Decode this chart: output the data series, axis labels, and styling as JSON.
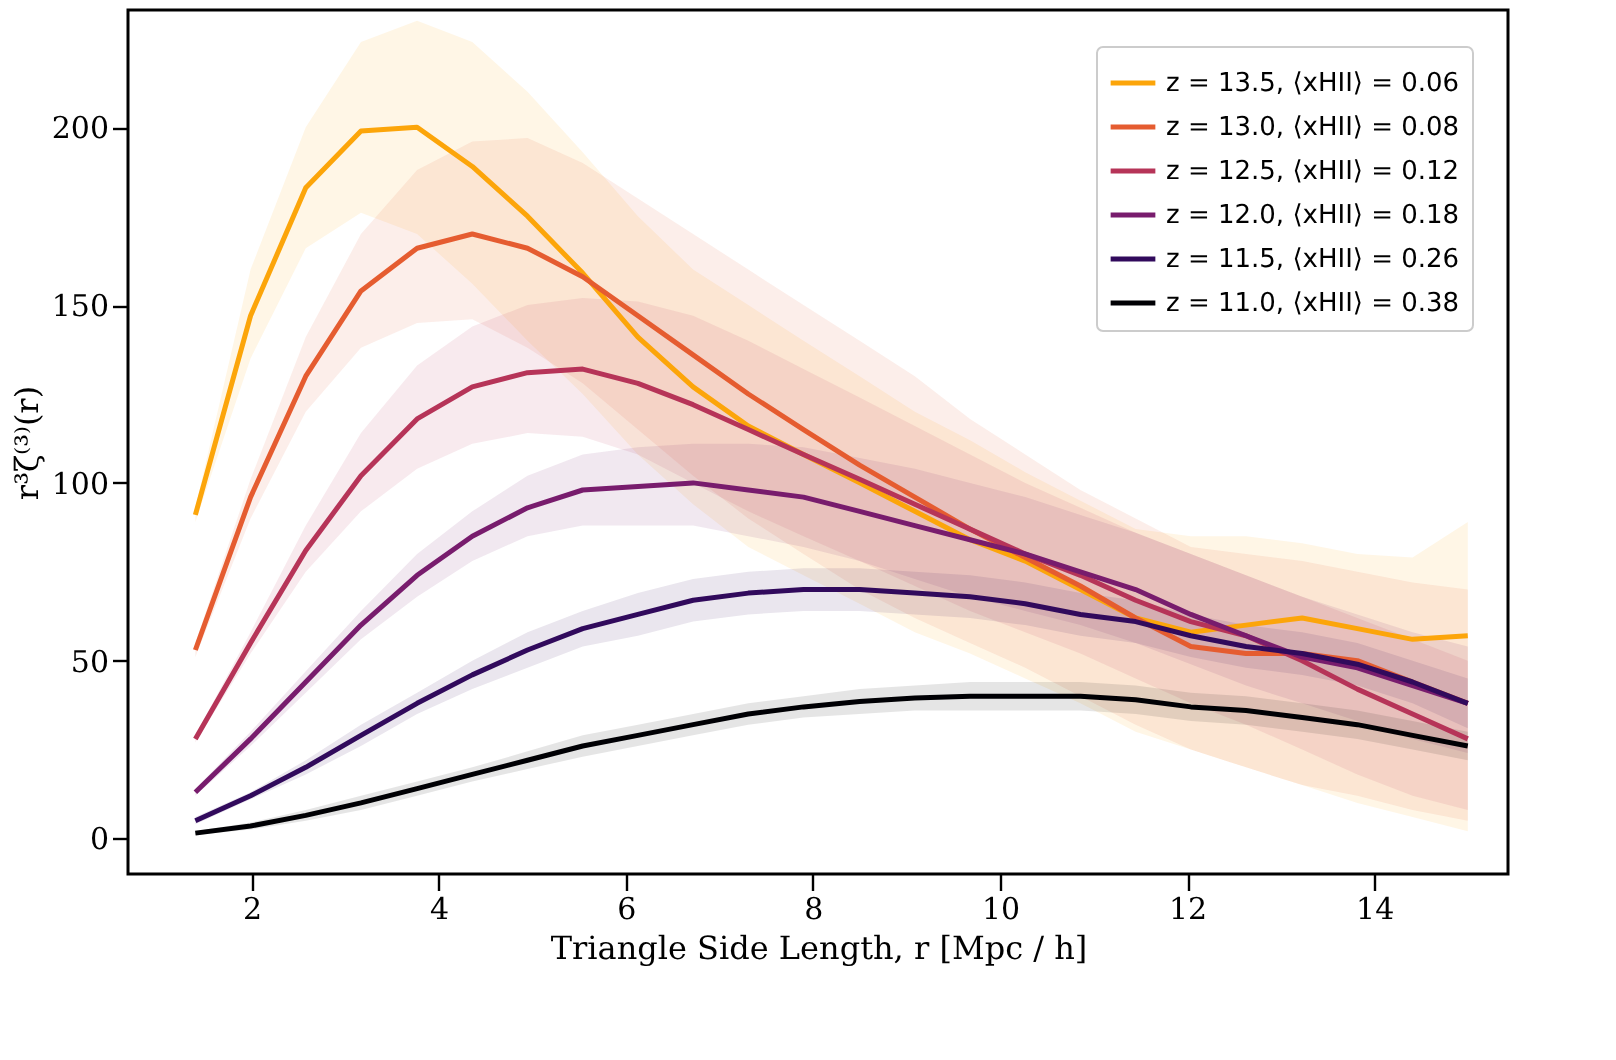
{
  "chart_data": {
    "type": "line",
    "xlabel": "Triangle Side Length, r [Mpc / h]",
    "ylabel": "r³ζ⁽³⁾(r)",
    "x": [
      1.4,
      1.99,
      2.58,
      3.17,
      3.77,
      4.36,
      4.95,
      5.54,
      6.13,
      6.72,
      7.31,
      7.9,
      8.5,
      9.09,
      9.68,
      10.27,
      10.86,
      11.45,
      12.04,
      12.63,
      13.23,
      13.82,
      14.41,
      15.0
    ],
    "xlim": [
      0.68,
      15.43
    ],
    "xticks": [
      2,
      4,
      6,
      8,
      10,
      12,
      14
    ],
    "ylim": [
      -10,
      233
    ],
    "yticks": [
      0,
      50,
      100,
      150,
      200
    ],
    "grid": false,
    "legend": "top right",
    "marker": "none",
    "line_style": "solid",
    "series": [
      {
        "name": "z = 13.5, ⟨xHII⟩ = 0.06",
        "color": "#fca50a",
        "values": [
          91,
          147,
          183,
          199,
          200,
          189,
          175,
          159,
          141,
          127,
          116,
          108,
          100,
          92,
          84,
          78,
          70,
          62,
          58,
          60,
          62,
          59,
          56,
          57
        ],
        "upper": [
          93,
          160,
          200,
          224,
          230,
          224,
          210,
          193,
          175,
          160,
          150,
          140,
          130,
          120,
          112,
          103,
          95,
          87,
          85,
          85,
          83,
          80,
          79,
          89
        ],
        "lower": [
          89,
          135,
          166,
          176,
          170,
          156,
          140,
          125,
          108,
          94,
          82,
          74,
          66,
          58,
          52,
          45,
          38,
          30,
          25,
          20,
          15,
          10,
          6,
          2
        ]
      },
      {
        "name": "z = 13.0, ⟨xHII⟩ = 0.08",
        "color": "#e55c30",
        "values": [
          53,
          96,
          130,
          154,
          166,
          170,
          166,
          158,
          147,
          136,
          125,
          115,
          105,
          96,
          87,
          79,
          71,
          62,
          54,
          52,
          52,
          50,
          44,
          38
        ],
        "upper": [
          55,
          101,
          141,
          170,
          188,
          196,
          197,
          190,
          180,
          170,
          160,
          150,
          140,
          130,
          118,
          108,
          98,
          90,
          82,
          80,
          78,
          75,
          72,
          70
        ],
        "lower": [
          51,
          90,
          120,
          138,
          145,
          146,
          138,
          128,
          115,
          102,
          90,
          80,
          70,
          62,
          55,
          48,
          40,
          32,
          25,
          20,
          15,
          12,
          8,
          5
        ]
      },
      {
        "name": "z = 12.5, ⟨xHII⟩ = 0.12",
        "color": "#b63458",
        "values": [
          28,
          55,
          81,
          102,
          118,
          127,
          131,
          132,
          128,
          122,
          115,
          108,
          101,
          94,
          87,
          80,
          74,
          67,
          61,
          57,
          50,
          42,
          35,
          28
        ],
        "upper": [
          29,
          58,
          88,
          114,
          133,
          144,
          150,
          152,
          151,
          147,
          140,
          132,
          124,
          116,
          108,
          100,
          93,
          86,
          80,
          74,
          68,
          62,
          56,
          50
        ],
        "lower": [
          27,
          52,
          75,
          92,
          104,
          111,
          114,
          113,
          108,
          100,
          92,
          85,
          78,
          71,
          64,
          58,
          52,
          45,
          38,
          32,
          25,
          18,
          12,
          8
        ]
      },
      {
        "name": "z = 12.0, ⟨xHII⟩ = 0.18",
        "color": "#781c6d",
        "values": [
          13,
          28,
          44,
          60,
          74,
          85,
          93,
          98,
          99,
          100,
          98,
          96,
          92,
          88,
          84,
          80,
          75,
          70,
          63,
          57,
          51,
          48,
          43,
          38
        ],
        "upper": [
          14,
          30,
          47,
          64,
          80,
          92,
          102,
          108,
          110,
          111,
          111,
          110,
          107,
          104,
          100,
          96,
          91,
          86,
          80,
          74,
          68,
          63,
          58,
          54
        ],
        "lower": [
          12,
          26,
          41,
          56,
          68,
          78,
          85,
          88,
          88,
          88,
          85,
          82,
          78,
          73,
          68,
          64,
          60,
          55,
          49,
          43,
          38,
          33,
          28,
          24
        ]
      },
      {
        "name": "z = 11.5, ⟨xHII⟩ = 0.26",
        "color": "#310a5c",
        "values": [
          5,
          12,
          20,
          29,
          38,
          46,
          53,
          59,
          63,
          67,
          69,
          70,
          70,
          69,
          68,
          66,
          63,
          61,
          57,
          54,
          52,
          49,
          44,
          38
        ],
        "upper": [
          6,
          13,
          22,
          32,
          41,
          50,
          58,
          64,
          69,
          73,
          75,
          76,
          76,
          75,
          74,
          72,
          69,
          67,
          63,
          60,
          58,
          55,
          50,
          45
        ],
        "lower": [
          4,
          11,
          18,
          26,
          35,
          42,
          48,
          54,
          57,
          61,
          63,
          64,
          64,
          63,
          62,
          60,
          57,
          55,
          51,
          48,
          46,
          43,
          38,
          31
        ]
      },
      {
        "name": "z = 11.0, ⟨xHII⟩ = 0.38",
        "color": "#000004",
        "values": [
          1.5,
          3.5,
          6.5,
          10,
          14,
          18,
          22,
          26,
          29,
          32,
          35,
          37,
          38.5,
          39.5,
          40,
          40,
          40,
          39,
          37,
          36,
          34,
          32,
          29,
          26
        ],
        "upper": [
          2,
          4.5,
          8,
          12,
          16,
          20,
          24.5,
          29,
          32,
          35,
          38,
          40,
          42,
          43,
          44,
          44,
          44,
          43,
          41,
          40,
          38,
          36,
          33,
          30
        ],
        "lower": [
          1,
          2.5,
          5,
          8,
          12,
          16,
          19.5,
          23,
          26,
          29,
          32,
          34,
          35,
          36,
          36,
          36,
          36,
          35,
          33,
          32,
          30,
          28,
          25,
          22
        ]
      }
    ]
  }
}
